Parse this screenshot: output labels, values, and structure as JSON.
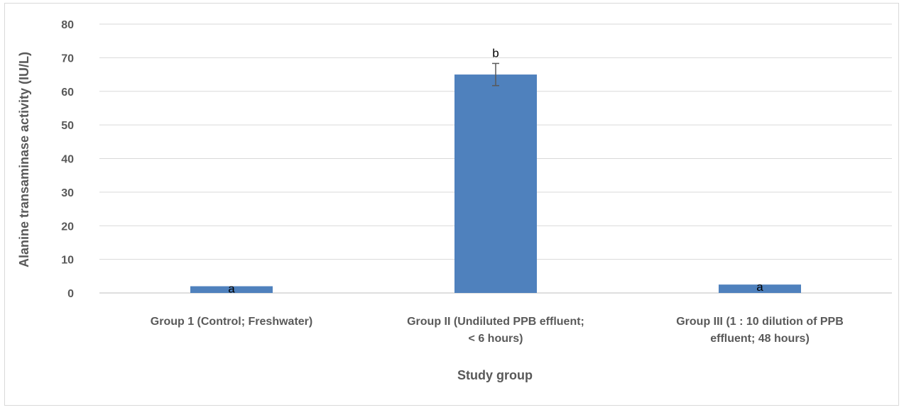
{
  "chart_data": {
    "type": "bar",
    "title": "",
    "xlabel": "Study group",
    "ylabel": "Alanine  transaminase activity (IU/L)",
    "ylim": [
      0,
      80
    ],
    "yticks": [
      0,
      10,
      20,
      30,
      40,
      50,
      60,
      70,
      80
    ],
    "categories": [
      [
        "Group 1 (Control; Freshwater)"
      ],
      [
        "Group II (Undiluted PPB effluent;",
        "< 6 hours)"
      ],
      [
        "Group III (1 : 10 dilution of PPB",
        "effluent;            48 hours)"
      ]
    ],
    "values": [
      2.0,
      65.0,
      2.5
    ],
    "errors": [
      0,
      3.3,
      0
    ],
    "significance_labels": [
      "a",
      "b",
      "a"
    ],
    "bar_color": "#4f81bd",
    "grid": true,
    "legend": "none"
  }
}
